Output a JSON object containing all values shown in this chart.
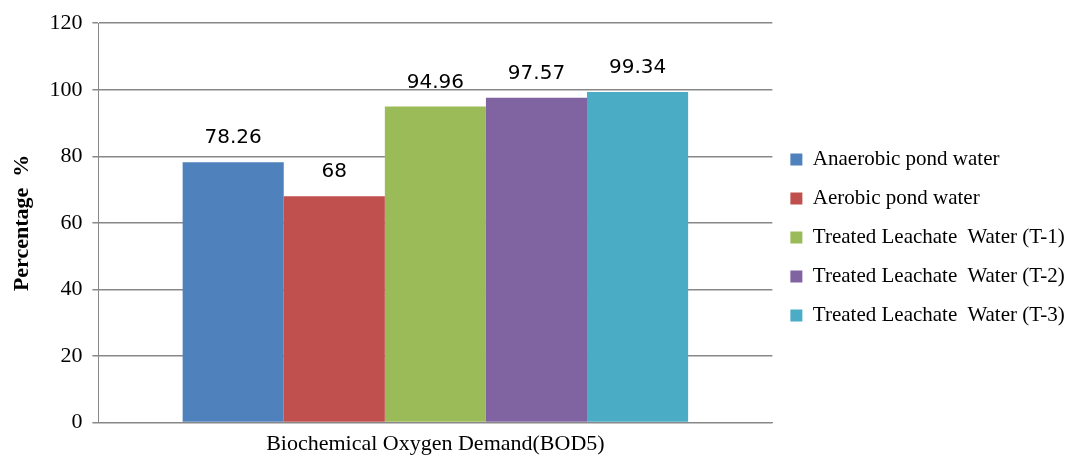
{
  "chart_data": {
    "type": "bar",
    "ylabel": "Percentage  %",
    "categories": [
      "Biochemical Oxygen Demand(BOD5)"
    ],
    "series": [
      {
        "name": "Anaerobic pond water",
        "color": "#4f81bd",
        "values": [
          78.26
        ]
      },
      {
        "name": "Aerobic pond water",
        "color": "#c0504d",
        "values": [
          68
        ]
      },
      {
        "name": "Treated Leachate  Water (T-1)",
        "color": "#9bbb59",
        "values": [
          94.96
        ]
      },
      {
        "name": "Treated Leachate  Water (T-2)",
        "color": "#8064a2",
        "values": [
          97.57
        ]
      },
      {
        "name": "Treated Leachate  Water (T-3)",
        "color": "#4bacc6",
        "values": [
          99.34
        ]
      }
    ],
    "ylim": [
      0,
      120
    ],
    "yticks": [
      0,
      20,
      40,
      60,
      80,
      100,
      120
    ],
    "grid": "y",
    "legend": "right",
    "data_labels": true
  }
}
